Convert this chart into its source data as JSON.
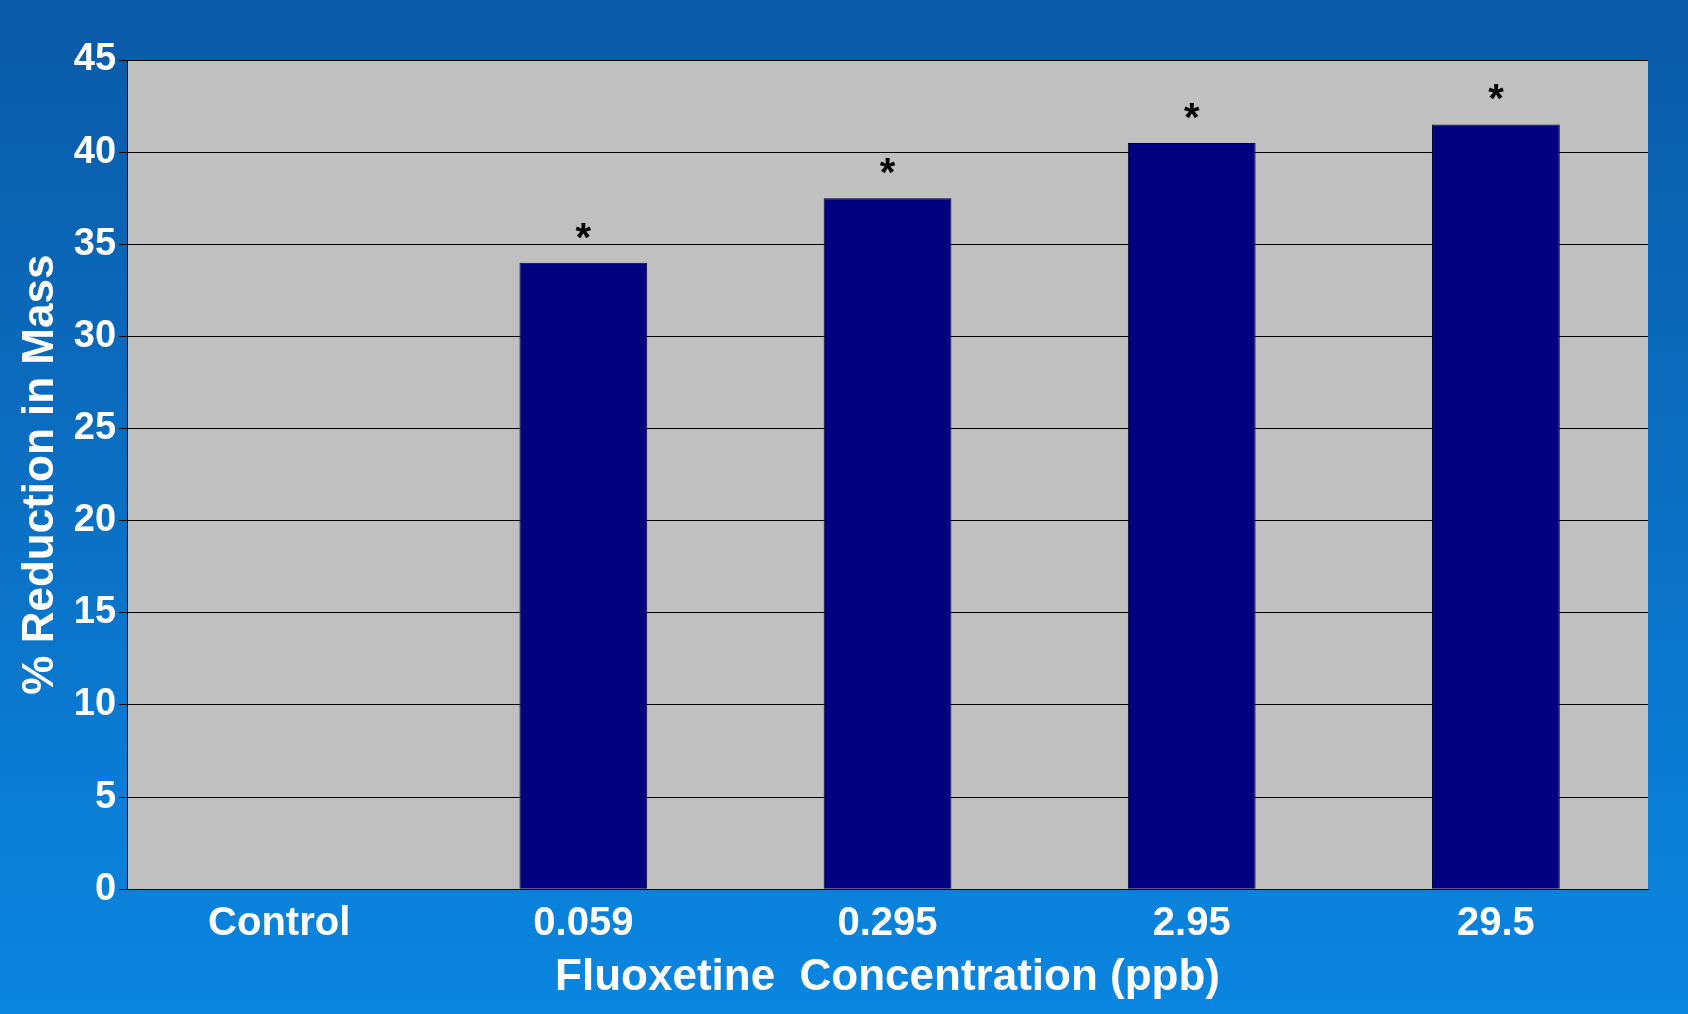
{
  "chart_data": {
    "type": "bar",
    "xlabel": "Fluoxetine  Concentration (ppb)",
    "ylabel": "% Reduction in Mass",
    "categories": [
      "Control",
      "0.059",
      "0.295",
      "2.95",
      "29.5"
    ],
    "values": [
      0,
      34,
      37.5,
      40.5,
      41.5
    ],
    "color": "#000080",
    "ylim": [
      0,
      45
    ],
    "yticks": [
      0,
      5,
      10,
      15,
      20,
      25,
      30,
      35,
      40,
      45
    ],
    "grid": "y",
    "annotations": [
      {
        "text": "*",
        "x": "0.059",
        "y": 34
      },
      {
        "text": "*",
        "x": "0.295",
        "y": 37.5
      },
      {
        "text": "*",
        "x": "2.95",
        "y": 40.5
      },
      {
        "text": "*",
        "x": "29.5",
        "y": 41.5
      }
    ]
  }
}
